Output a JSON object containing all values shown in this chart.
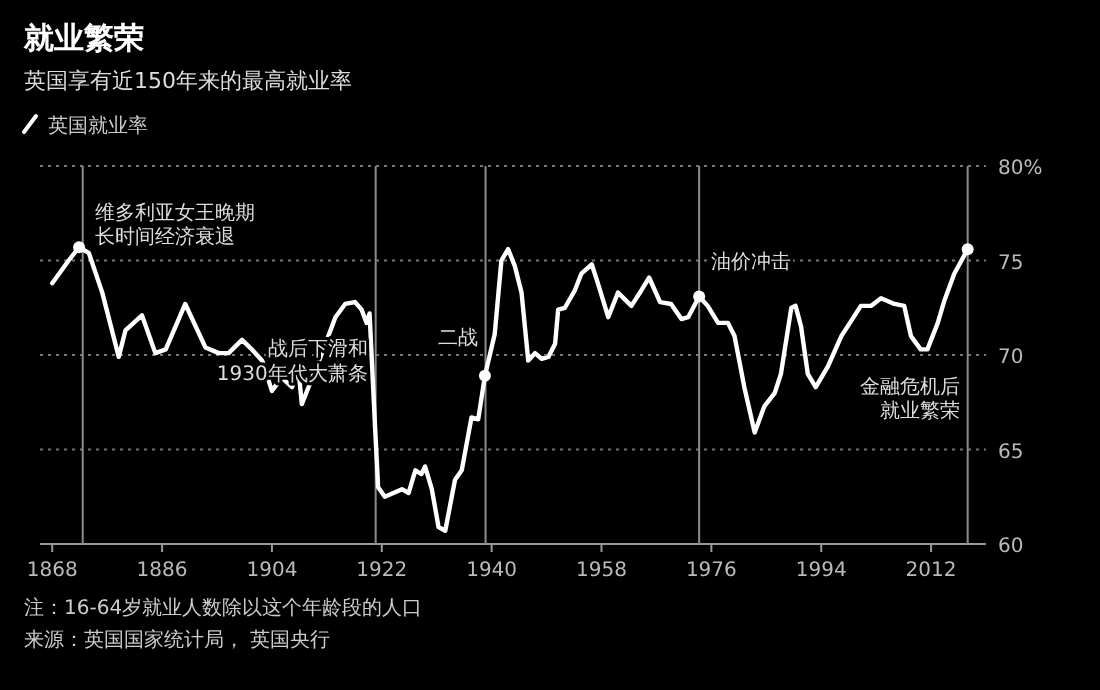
{
  "chart_data": {
    "type": "line",
    "title": "就业繁荣",
    "subtitle": "英国享有近150年来的最高就业率",
    "legend": "top left",
    "grid": "y",
    "line_style": "solid",
    "xlim": [
      1866,
      2021
    ],
    "xticks": [
      1868,
      1886,
      1904,
      1922,
      1940,
      1958,
      1976,
      1994,
      2012
    ],
    "ylim": [
      60,
      80
    ],
    "yticks": [
      60,
      65,
      70,
      75,
      {
        "value": 80,
        "label": "80%"
      }
    ],
    "series": [
      {
        "name": "英国就业率",
        "color": "#ffffff",
        "x": [
          1868,
          1870.7,
          1872.4,
          1874,
          1876.2,
          1878.9,
          1880,
          1882.7,
          1884.9,
          1886.6,
          1889.8,
          1893.1,
          1895.3,
          1896.9,
          1899.1,
          1900.7,
          1902.4,
          1904,
          1905.6,
          1907.3,
          1908.3,
          1908.9,
          1910.5,
          1912.2,
          1914.4,
          1916,
          1917.6,
          1918.7,
          1919.5,
          1920,
          1920.9,
          1921.4,
          1922.5,
          1925.3,
          1926.4,
          1927.5,
          1928.5,
          1929.1,
          1930.2,
          1931.3,
          1932.4,
          1934,
          1935.1,
          1936.7,
          1937.8,
          1938.9,
          1940.5,
          1941.6,
          1942.7,
          1943.8,
          1944.9,
          1946,
          1947.1,
          1948.2,
          1949.3,
          1950.4,
          1950.9,
          1952,
          1953.6,
          1954.7,
          1956.4,
          1957.4,
          1959.1,
          1960.7,
          1962.9,
          1964.5,
          1965.8,
          1967.6,
          1969.4,
          1971.1,
          1972.2,
          1974,
          1975.4,
          1977.1,
          1978.7,
          1979.8,
          1981.4,
          1983.1,
          1984.7,
          1986.4,
          1987.4,
          1989.1,
          1989.8,
          1990.7,
          1991.8,
          1993.1,
          1995.1,
          1997.3,
          2000.5,
          2002.2,
          2003.8,
          2006,
          2007.6,
          2008.7,
          2010.3,
          2011.4,
          2013.1,
          2014.2,
          2015.8,
          2018
        ],
        "values": [
          73.8,
          75.0,
          75.7,
          75.4,
          73.3,
          69.9,
          71.3,
          72.1,
          70.1,
          70.3,
          72.7,
          70.4,
          70.1,
          70.1,
          70.8,
          70.3,
          69.7,
          68.1,
          68.8,
          68.3,
          69.4,
          67.4,
          68.7,
          70.1,
          72.0,
          72.7,
          72.8,
          72.4,
          71.7,
          72.2,
          66.2,
          63.0,
          62.5,
          62.9,
          62.7,
          63.9,
          63.7,
          64.1,
          62.9,
          60.9,
          60.7,
          63.4,
          63.9,
          66.7,
          66.6,
          68.9,
          71.1,
          75.0,
          75.6,
          74.7,
          73.3,
          69.7,
          70.1,
          69.8,
          69.9,
          70.6,
          72.4,
          72.5,
          73.4,
          74.3,
          74.8,
          73.8,
          72.0,
          73.3,
          72.6,
          73.4,
          74.1,
          72.8,
          72.7,
          71.9,
          72.0,
          73.1,
          72.6,
          71.7,
          71.7,
          71.0,
          68.3,
          65.9,
          67.3,
          68.0,
          69.0,
          72.5,
          72.6,
          71.5,
          69.0,
          68.3,
          69.4,
          71.0,
          72.6,
          72.6,
          73.0,
          72.7,
          72.6,
          71.0,
          70.3,
          70.3,
          71.7,
          72.9,
          74.3,
          75.6
        ]
      },
      {
        "type": "scatter",
        "marker": "circle",
        "color": "#ffffff",
        "x": [
          1872.4,
          1938.9,
          1974,
          2018
        ],
        "values": [
          75.7,
          68.9,
          73.1,
          75.6
        ]
      }
    ],
    "ref_lines": [
      {
        "axis": "x",
        "value": 1873,
        "color": "#8c8c8c"
      },
      {
        "axis": "x",
        "value": 1921,
        "color": "#8c8c8c"
      },
      {
        "axis": "x",
        "value": 1939,
        "color": "#8c8c8c"
      },
      {
        "axis": "x",
        "value": 1974,
        "color": "#8c8c8c"
      },
      {
        "axis": "x",
        "value": 2018,
        "color": "#8c8c8c"
      }
    ],
    "annotations": [
      {
        "text": "维多利亚女王晚期",
        "x": 1873,
        "y": 77.2
      },
      {
        "text": "长时间经济衰退",
        "x": 1873,
        "y": 75.9
      },
      {
        "text": "战后下滑和",
        "x": 1921,
        "y": 70
      },
      {
        "text": "1930年代大萧条",
        "x": 1921,
        "y": 68.7
      },
      {
        "text": "二战",
        "x": 1939,
        "y": 70.6
      },
      {
        "text": "油价冲击",
        "x": 1974,
        "y": 74.6
      },
      {
        "text": "金融危机后",
        "x": 2018,
        "y": 68
      },
      {
        "text": "就业繁荣",
        "x": 2018,
        "y": 66.7
      },
      "注：16-64岁就业人数除以这个年龄段的人口",
      "来源：英国国家统计局， 英国央行"
    ]
  }
}
